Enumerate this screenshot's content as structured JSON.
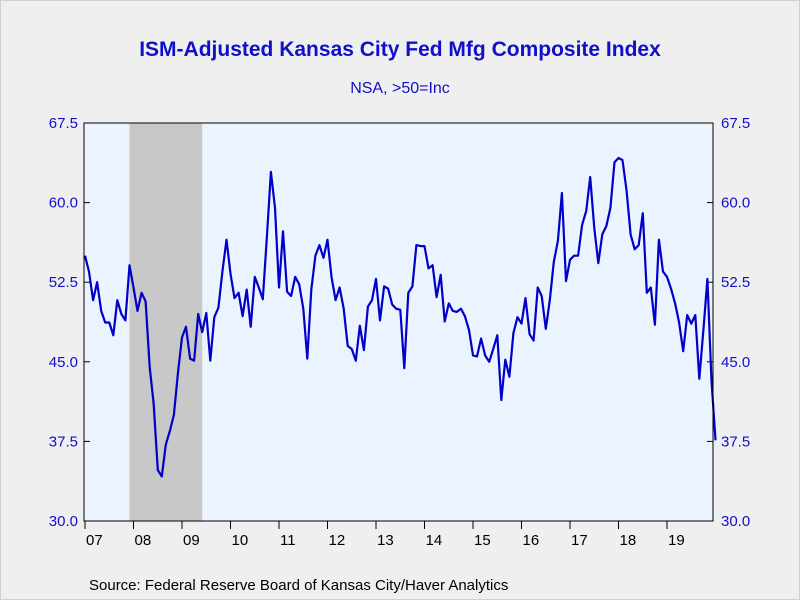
{
  "chart_data": {
    "type": "line",
    "title": "ISM-Adjusted Kansas City Fed Mfg Composite Index",
    "subtitle": "NSA, >50=Inc",
    "source": "Source:  Federal Reserve Board of Kansas City/Haver Analytics",
    "xlabel": "",
    "ylabel": "",
    "ylim": [
      30.0,
      67.5
    ],
    "y_ticks": [
      "30.0",
      "37.5",
      "45.0",
      "52.5",
      "60.0",
      "67.5"
    ],
    "x_tick_labels": [
      "07",
      "08",
      "09",
      "10",
      "11",
      "12",
      "13",
      "14",
      "15",
      "16",
      "17",
      "18",
      "19"
    ],
    "x_start": "2007-01",
    "recession": {
      "start": "2007-12",
      "end": "2009-06"
    },
    "grid": false,
    "colors": {
      "line": "#0000c8",
      "text": "#1010c8",
      "plot_bg": "#eaf3fe",
      "recession": "#c8c8c8",
      "page_bg": "#efefef"
    },
    "series": [
      {
        "values": [
          55.0,
          53.5,
          50.8,
          52.5,
          49.8,
          48.7,
          48.7,
          47.5,
          50.8,
          49.5,
          48.9,
          54.1,
          52.0,
          49.8,
          51.5,
          50.7,
          44.5,
          41.0,
          34.8,
          34.2,
          37.2,
          38.5,
          40.0,
          44.0,
          47.3,
          48.3,
          45.3,
          45.1,
          49.5,
          47.8,
          49.6,
          45.1,
          49.2,
          50.1,
          53.5,
          56.5,
          53.3,
          51.0,
          51.5,
          49.3,
          51.8,
          48.3,
          53.0,
          52.0,
          50.9,
          56.8,
          62.9,
          59.5,
          52.0,
          57.3,
          51.6,
          51.2,
          53.0,
          52.3,
          50.0,
          45.3,
          51.8,
          55.0,
          56.0,
          54.8,
          56.5,
          53.0,
          50.8,
          52.0,
          50.0,
          46.5,
          46.2,
          45.1,
          48.4,
          46.1,
          50.2,
          50.8,
          52.8,
          48.9,
          52.1,
          51.9,
          50.4,
          50.0,
          49.9,
          44.4,
          51.5,
          52.1,
          56.0,
          55.9,
          55.9,
          53.8,
          54.1,
          51.1,
          53.2,
          48.8,
          50.5,
          49.8,
          49.7,
          50.0,
          49.3,
          48.0,
          45.6,
          45.5,
          47.2,
          45.6,
          45.0,
          46.2,
          47.5,
          41.4,
          45.2,
          43.6,
          47.7,
          49.2,
          48.6,
          51.0,
          47.6,
          47.0,
          52.0,
          51.2,
          48.1,
          50.8,
          54.4,
          56.4,
          60.9,
          52.6,
          54.6,
          55.0,
          55.0,
          57.9,
          59.2,
          62.4,
          57.6,
          54.3,
          57.0,
          57.8,
          59.5,
          63.8,
          64.2,
          64.0,
          61.1,
          57.0,
          55.6,
          56.0,
          59.0,
          51.5,
          52.0,
          48.5,
          56.5,
          53.5,
          53.0,
          51.9,
          50.5,
          48.7,
          46.0,
          49.4,
          48.6,
          49.4,
          43.4,
          48.0,
          52.8,
          43.2,
          37.6
        ]
      }
    ]
  }
}
